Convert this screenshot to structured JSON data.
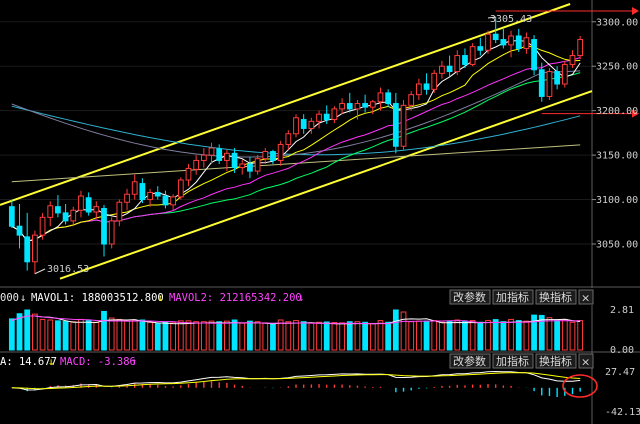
{
  "colors": {
    "background": "#000000",
    "up": "#ff3b3b",
    "down": "#00e5ff",
    "channel": "#ffff33",
    "ma5": "#ffffff",
    "ma10": "#ffff00",
    "ma20": "#ff33ff",
    "ma30": "#00ff66",
    "ma60": "#7f7f9f",
    "ma120": "#2fb0d0",
    "ma250": "#bfbf7f",
    "reference_line": "#ff2b2b",
    "macd_dif": "#ffffff",
    "macd_dea": "#ffff00",
    "highlight_circle": "#ff2b2b"
  },
  "price_axis": {
    "ticks": [
      "3300.00",
      "3250.00",
      "3200.00",
      "3150.00",
      "3100.00",
      "3050.00"
    ],
    "min": 3005,
    "max": 3320
  },
  "price_annotations": {
    "high_label": "3305.43",
    "low_label": "3016.53"
  },
  "volume_panel": {
    "header_prefix": "000",
    "mavol1_label": "MAVOL1: 188003512.800",
    "mavol2_label": "MAVOL2: 212165342.200",
    "axis_ticks": [
      "2.81",
      "0.00"
    ],
    "buttons": [
      "改参数",
      "加指标",
      "换指标"
    ],
    "close_glyph": "×"
  },
  "macd_panel": {
    "dea_label": "A: 14.677",
    "macd_label": "MACD: -3.386",
    "axis_ticks": [
      "27.47",
      "-42.13"
    ],
    "buttons": [
      "改参数",
      "加指标",
      "换指标"
    ],
    "close_glyph": "×"
  },
  "chart_data": {
    "type": "candlestick",
    "ohlc": [
      [
        3092,
        3100,
        3068,
        3070
      ],
      [
        3070,
        3095,
        3045,
        3060
      ],
      [
        3058,
        3085,
        3020,
        3030
      ],
      [
        3030,
        3065,
        3016.53,
        3060
      ],
      [
        3060,
        3085,
        3055,
        3080
      ],
      [
        3080,
        3098,
        3070,
        3093
      ],
      [
        3092,
        3105,
        3080,
        3085
      ],
      [
        3085,
        3095,
        3072,
        3076
      ],
      [
        3076,
        3092,
        3070,
        3088
      ],
      [
        3088,
        3110,
        3080,
        3104
      ],
      [
        3102,
        3108,
        3082,
        3086
      ],
      [
        3086,
        3098,
        3078,
        3092
      ],
      [
        3090,
        3094,
        3036,
        3050
      ],
      [
        3050,
        3080,
        3045,
        3076
      ],
      [
        3076,
        3100,
        3070,
        3097
      ],
      [
        3097,
        3112,
        3088,
        3106
      ],
      [
        3106,
        3128,
        3100,
        3120
      ],
      [
        3118,
        3124,
        3096,
        3100
      ],
      [
        3100,
        3112,
        3092,
        3108
      ],
      [
        3108,
        3115,
        3100,
        3104
      ],
      [
        3104,
        3110,
        3090,
        3094
      ],
      [
        3094,
        3106,
        3088,
        3103
      ],
      [
        3103,
        3125,
        3100,
        3122
      ],
      [
        3122,
        3140,
        3115,
        3135
      ],
      [
        3134,
        3150,
        3128,
        3144
      ],
      [
        3144,
        3158,
        3136,
        3150
      ],
      [
        3150,
        3164,
        3140,
        3158
      ],
      [
        3157,
        3162,
        3140,
        3144
      ],
      [
        3144,
        3156,
        3132,
        3152
      ],
      [
        3152,
        3158,
        3130,
        3136
      ],
      [
        3136,
        3145,
        3128,
        3140
      ],
      [
        3140,
        3148,
        3124,
        3132
      ],
      [
        3132,
        3150,
        3128,
        3146
      ],
      [
        3146,
        3158,
        3140,
        3154
      ],
      [
        3154,
        3156,
        3140,
        3144
      ],
      [
        3144,
        3166,
        3138,
        3162
      ],
      [
        3162,
        3178,
        3156,
        3174
      ],
      [
        3174,
        3196,
        3170,
        3192
      ],
      [
        3190,
        3196,
        3174,
        3180
      ],
      [
        3180,
        3192,
        3174,
        3188
      ],
      [
        3188,
        3200,
        3180,
        3196
      ],
      [
        3196,
        3206,
        3185,
        3190
      ],
      [
        3190,
        3205,
        3186,
        3202
      ],
      [
        3202,
        3214,
        3196,
        3208
      ],
      [
        3208,
        3220,
        3198,
        3202
      ],
      [
        3202,
        3212,
        3190,
        3208
      ],
      [
        3208,
        3218,
        3198,
        3204
      ],
      [
        3204,
        3212,
        3196,
        3210
      ],
      [
        3210,
        3226,
        3200,
        3220
      ],
      [
        3220,
        3224,
        3204,
        3208
      ],
      [
        3208,
        3220,
        3152,
        3160
      ],
      [
        3160,
        3212,
        3156,
        3206
      ],
      [
        3206,
        3222,
        3200,
        3218
      ],
      [
        3218,
        3236,
        3212,
        3230
      ],
      [
        3230,
        3242,
        3218,
        3224
      ],
      [
        3224,
        3246,
        3220,
        3242
      ],
      [
        3242,
        3256,
        3236,
        3250
      ],
      [
        3250,
        3262,
        3238,
        3244
      ],
      [
        3244,
        3268,
        3240,
        3262
      ],
      [
        3262,
        3270,
        3248,
        3252
      ],
      [
        3252,
        3276,
        3250,
        3272
      ],
      [
        3272,
        3282,
        3262,
        3268
      ],
      [
        3268,
        3290,
        3264,
        3286
      ],
      [
        3286,
        3305.43,
        3276,
        3280
      ],
      [
        3280,
        3292,
        3270,
        3274
      ],
      [
        3274,
        3290,
        3260,
        3284
      ],
      [
        3284,
        3292,
        3266,
        3270
      ],
      [
        3270,
        3288,
        3264,
        3282
      ],
      [
        3280,
        3285,
        3240,
        3246
      ],
      [
        3246,
        3254,
        3210,
        3216
      ],
      [
        3216,
        3248,
        3212,
        3244
      ],
      [
        3244,
        3250,
        3224,
        3230
      ],
      [
        3230,
        3256,
        3226,
        3252
      ],
      [
        3252,
        3268,
        3248,
        3262
      ],
      [
        3262,
        3284,
        3258,
        3280
      ]
    ],
    "volume_scale_max": 2.81,
    "macd_range": [
      -42.13,
      27.47
    ]
  }
}
